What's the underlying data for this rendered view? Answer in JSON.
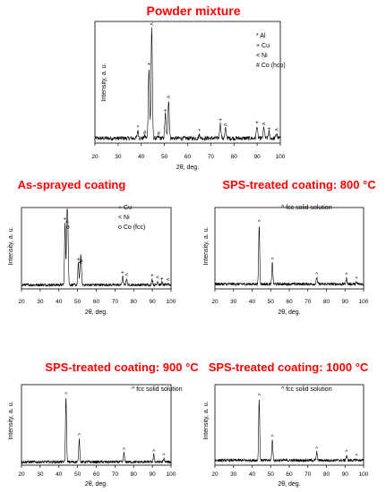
{
  "chart_data": [
    {
      "type": "line",
      "title": "Powder mixture",
      "xlabel": "2θ, deg.",
      "ylabel": "Intensity, a. u.",
      "xlim": [
        20,
        100
      ],
      "ylim": [
        0,
        1
      ],
      "x_ticks": [
        "20",
        "30",
        "40",
        "50",
        "60",
        "70",
        "80",
        "90",
        "100"
      ],
      "legend_items": [
        "* Al",
        "+ Cu",
        "< Ni",
        "# Co (hcp)"
      ],
      "baseline": 0.04,
      "peaks": [
        {
          "x": 38.5,
          "y": 0.1,
          "label": "*"
        },
        {
          "x": 41.5,
          "y": 0.06,
          "label": "#"
        },
        {
          "x": 43.3,
          "y": 0.62,
          "label": "+"
        },
        {
          "x": 44.5,
          "y": 0.95,
          "label": "<"
        },
        {
          "x": 47.5,
          "y": 0.05,
          "label": "#"
        },
        {
          "x": 50.4,
          "y": 0.24,
          "label": "+"
        },
        {
          "x": 51.8,
          "y": 0.35,
          "label": "<"
        },
        {
          "x": 65.1,
          "y": 0.07,
          "label": "*"
        },
        {
          "x": 74.1,
          "y": 0.16,
          "label": "+"
        },
        {
          "x": 76.4,
          "y": 0.12,
          "label": "<"
        },
        {
          "x": 89.9,
          "y": 0.14,
          "label": "+"
        },
        {
          "x": 92.9,
          "y": 0.13,
          "label": "<"
        },
        {
          "x": 95.1,
          "y": 0.09,
          "label": "+"
        },
        {
          "x": 98.4,
          "y": 0.08,
          "label": "<"
        }
      ]
    },
    {
      "type": "line",
      "title": "As-sprayed coating",
      "xlabel": "2θ, deg.",
      "ylabel": "Intensity, a. u.",
      "xlim": [
        20,
        100
      ],
      "ylim": [
        0,
        1
      ],
      "x_ticks": [
        "20",
        "30",
        "40",
        "50",
        "60",
        "70",
        "80",
        "90",
        "100"
      ],
      "legend_items": [
        "+ Cu",
        "< Ni",
        "o Co (fcc)"
      ],
      "baseline": 0.05,
      "peaks": [
        {
          "x": 43.3,
          "y": 0.82,
          "label": "+"
        },
        {
          "x": 44.3,
          "y": 0.78,
          "label": "<"
        },
        {
          "x": 44.8,
          "y": 0.72,
          "label": "o"
        },
        {
          "x": 50.4,
          "y": 0.32,
          "label": "+"
        },
        {
          "x": 51.5,
          "y": 0.28,
          "label": "<"
        },
        {
          "x": 51.9,
          "y": 0.3,
          "label": "o"
        },
        {
          "x": 74.1,
          "y": 0.16,
          "label": "+"
        },
        {
          "x": 76.2,
          "y": 0.13,
          "label": "<"
        },
        {
          "x": 89.9,
          "y": 0.12,
          "label": "+"
        },
        {
          "x": 92.8,
          "y": 0.1,
          "label": "<"
        },
        {
          "x": 95.1,
          "y": 0.08,
          "label": "+"
        },
        {
          "x": 98.4,
          "y": 0.07,
          "label": "<"
        }
      ]
    },
    {
      "type": "line",
      "title": "SPS-treated coating: 800 °C",
      "xlabel": "2θ, deg.",
      "ylabel": "Intensity, a. u.",
      "xlim": [
        20,
        100
      ],
      "ylim": [
        0,
        1
      ],
      "x_ticks": [
        "20",
        "30",
        "40",
        "50",
        "60",
        "70",
        "80",
        "90",
        "100"
      ],
      "legend_items": [
        "^ fcc solid solution"
      ],
      "baseline": 0.06,
      "peaks": [
        {
          "x": 43.8,
          "y": 0.78,
          "label": "^"
        },
        {
          "x": 50.9,
          "y": 0.32,
          "label": "^"
        },
        {
          "x": 74.8,
          "y": 0.14,
          "label": "^"
        },
        {
          "x": 90.8,
          "y": 0.13,
          "label": "^"
        },
        {
          "x": 96.2,
          "y": 0.08,
          "label": "^"
        }
      ]
    },
    {
      "type": "line",
      "title": "SPS-treated coating: 900 °C",
      "xlabel": "2θ, deg.",
      "ylabel": "Intensity, a. u.",
      "xlim": [
        20,
        100
      ],
      "ylim": [
        0,
        1
      ],
      "x_ticks": [
        "20",
        "30",
        "40",
        "50",
        "60",
        "70",
        "80",
        "90",
        "100"
      ],
      "legend_items": [
        "^ fcc solid solution"
      ],
      "baseline": 0.04,
      "peaks": [
        {
          "x": 43.8,
          "y": 0.84,
          "label": "^"
        },
        {
          "x": 50.9,
          "y": 0.33,
          "label": "^"
        },
        {
          "x": 74.8,
          "y": 0.15,
          "label": "^"
        },
        {
          "x": 90.8,
          "y": 0.13,
          "label": "^"
        },
        {
          "x": 96.2,
          "y": 0.08,
          "label": "^"
        }
      ]
    },
    {
      "type": "line",
      "title": "SPS-treated coating: 1000 °C",
      "xlabel": "2θ, deg.",
      "ylabel": "Intensity, a. u.",
      "xlim": [
        20,
        100
      ],
      "ylim": [
        0,
        1
      ],
      "x_ticks": [
        "20",
        "30",
        "40",
        "50",
        "60",
        "70",
        "80",
        "90",
        "100"
      ],
      "legend_items": [
        "^ fcc solid solution"
      ],
      "baseline": 0.06,
      "peaks": [
        {
          "x": 43.8,
          "y": 0.82,
          "label": "^"
        },
        {
          "x": 50.9,
          "y": 0.31,
          "label": "^"
        },
        {
          "x": 74.8,
          "y": 0.16,
          "label": "^"
        },
        {
          "x": 90.8,
          "y": 0.12,
          "label": "^"
        },
        {
          "x": 96.2,
          "y": 0.07,
          "label": "^"
        }
      ]
    }
  ]
}
